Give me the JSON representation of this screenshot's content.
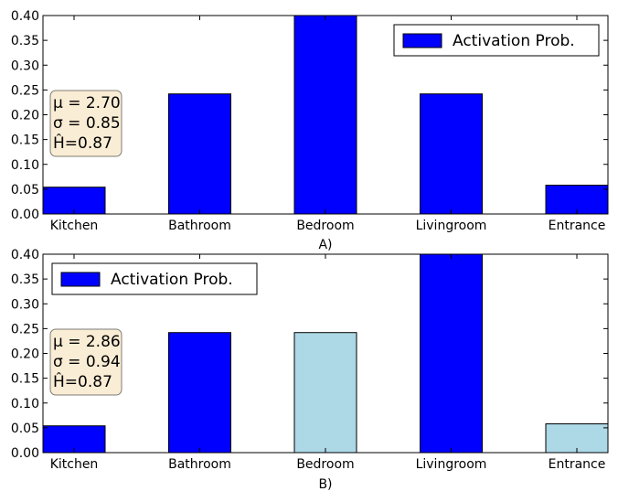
{
  "chart_data": [
    {
      "type": "bar",
      "xlabel": "A)",
      "categories": [
        "Kitchen",
        "Bathroom",
        "Bedroom",
        "Livingroom",
        "Entrance"
      ],
      "series": [
        {
          "name": "Activation Prob.",
          "values": [
            0.054,
            0.242,
            0.4,
            0.242,
            0.058
          ]
        }
      ],
      "bar_colors": [
        "#0000ff",
        "#0000ff",
        "#0000ff",
        "#0000ff",
        "#0000ff"
      ],
      "ylim": [
        0,
        0.4
      ],
      "yticks": [
        "0.00",
        "0.05",
        "0.10",
        "0.15",
        "0.20",
        "0.25",
        "0.30",
        "0.35",
        "0.40"
      ],
      "legend": {
        "label": "Activation Prob.",
        "placement": "top-right"
      },
      "stats": [
        "μ = 2.70",
        "σ = 0.85",
        "Ĥ=0.87"
      ],
      "grid": false
    },
    {
      "type": "bar",
      "xlabel": "B)",
      "categories": [
        "Kitchen",
        "Bathroom",
        "Bedroom",
        "Livingroom",
        "Entrance"
      ],
      "series": [
        {
          "name": "Activation Prob.",
          "values": [
            0.054,
            0.242,
            0.242,
            0.4,
            0.058
          ]
        }
      ],
      "bar_colors": [
        "#0000ff",
        "#0000ff",
        "#add8e6",
        "#0000ff",
        "#add8e6"
      ],
      "ylim": [
        0,
        0.4
      ],
      "yticks": [
        "0.00",
        "0.05",
        "0.10",
        "0.15",
        "0.20",
        "0.25",
        "0.30",
        "0.35",
        "0.40"
      ],
      "legend": {
        "label": "Activation Prob.",
        "placement": "top-left"
      },
      "stats": [
        "μ = 2.86",
        "σ = 0.94",
        "Ĥ=0.87"
      ],
      "grid": false
    }
  ]
}
